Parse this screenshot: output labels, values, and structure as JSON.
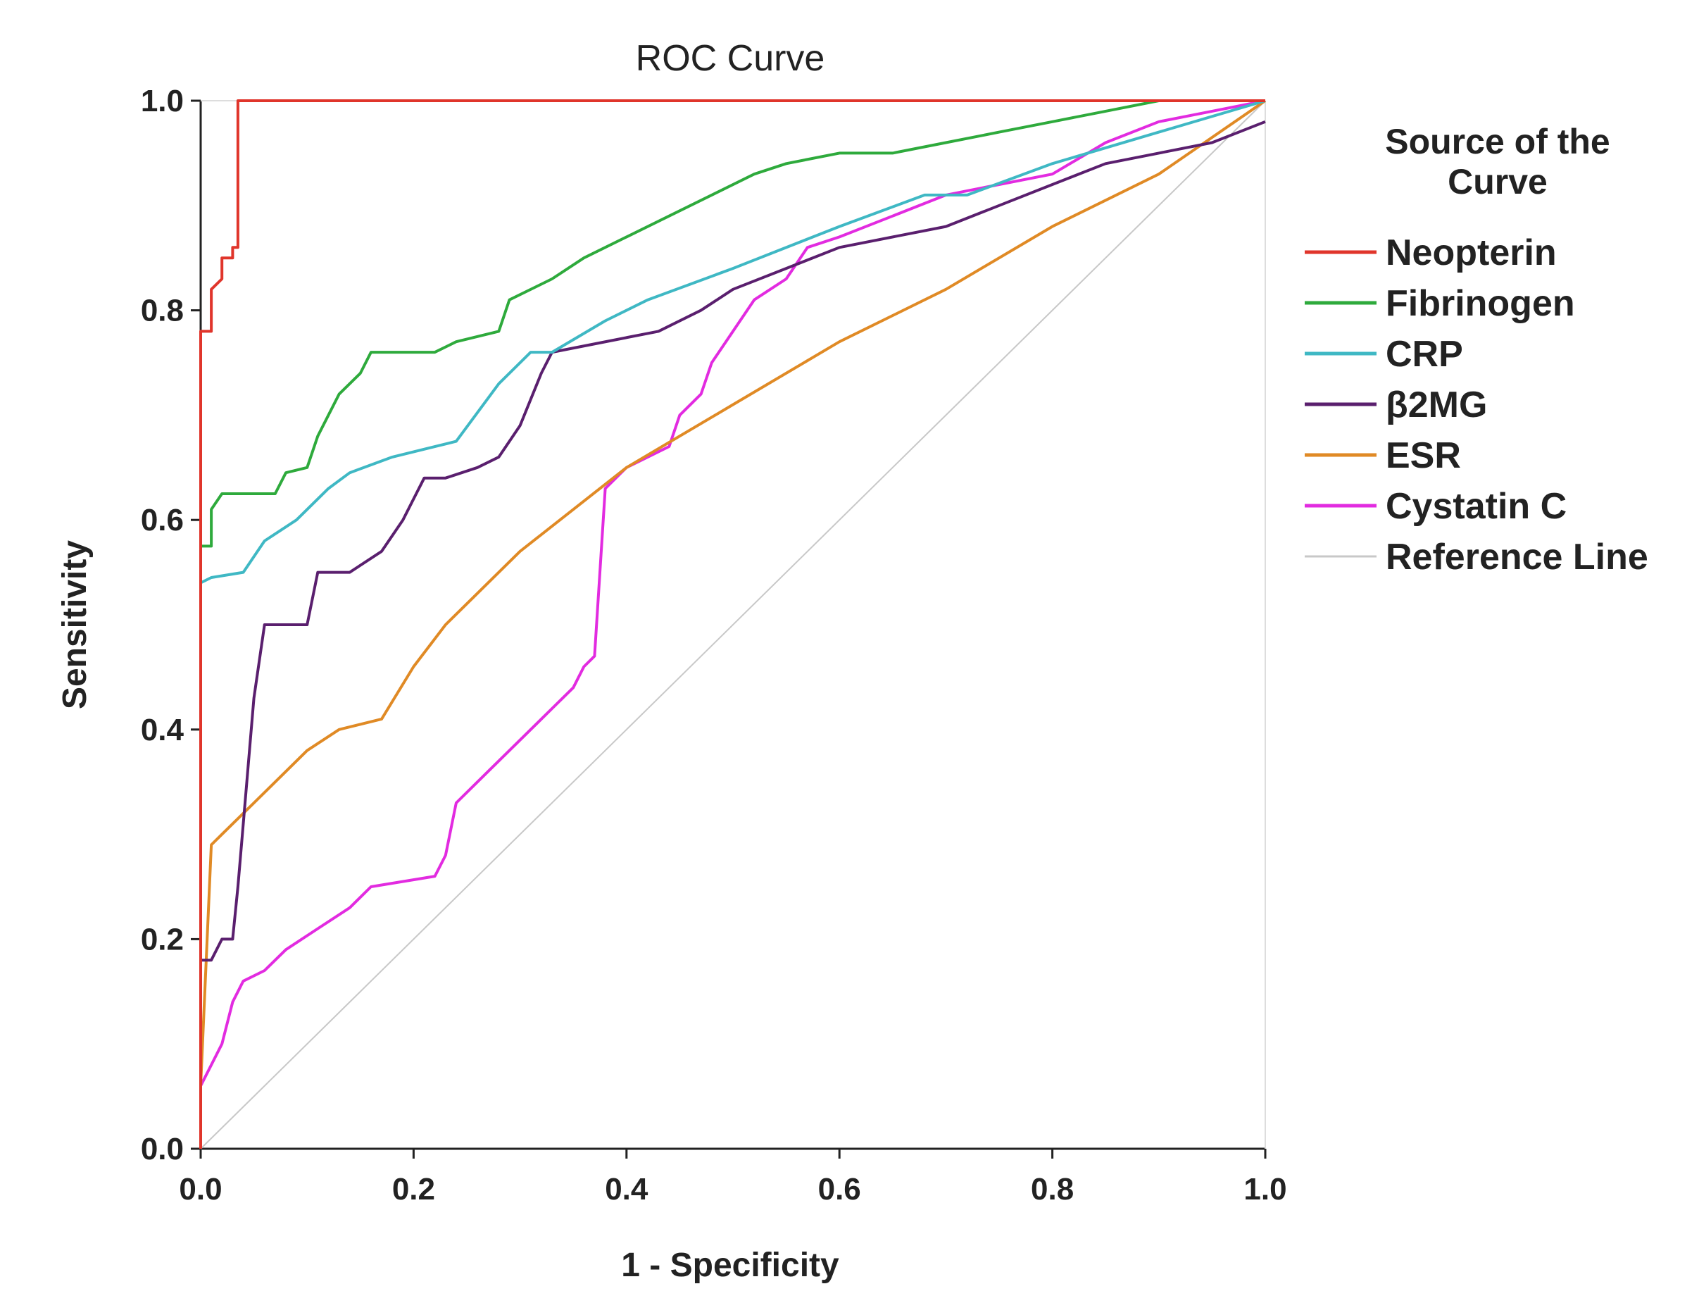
{
  "chart_data": {
    "type": "line",
    "title": "ROC Curve",
    "xlabel": "1 - Specificity",
    "ylabel": "Sensitivity",
    "xlim": [
      0,
      1
    ],
    "ylim": [
      0,
      1
    ],
    "x_ticks": [
      0.0,
      0.2,
      0.4,
      0.6,
      0.8,
      1.0
    ],
    "y_ticks": [
      0.0,
      0.2,
      0.4,
      0.6,
      0.8,
      1.0
    ],
    "x_tick_labels": [
      "0.0",
      "0.2",
      "0.4",
      "0.6",
      "0.8",
      "1.0"
    ],
    "y_tick_labels": [
      "0.0",
      "0.2",
      "0.4",
      "0.6",
      "0.8",
      "1.0"
    ],
    "grid": false,
    "legend": {
      "title_line1": "Source of the",
      "title_line2": "Curve",
      "placement": "right"
    },
    "series": [
      {
        "name": "Neopterin",
        "color": "#e0352b",
        "x": [
          0,
          0,
          0,
          0.01,
          0.01,
          0.02,
          0.02,
          0.03,
          0.03,
          0.035,
          0.035,
          0.045,
          0.05,
          1.0
        ],
        "y": [
          0,
          0.78,
          0.78,
          0.78,
          0.82,
          0.83,
          0.85,
          0.85,
          0.86,
          0.86,
          1.0,
          1.0,
          1.0,
          1.0
        ]
      },
      {
        "name": "Fibrinogen",
        "color": "#2eaa3c",
        "x": [
          0,
          0,
          0.01,
          0.01,
          0.02,
          0.07,
          0.08,
          0.1,
          0.11,
          0.13,
          0.15,
          0.16,
          0.22,
          0.24,
          0.28,
          0.29,
          0.33,
          0.36,
          0.4,
          0.44,
          0.48,
          0.52,
          0.55,
          0.6,
          0.65,
          0.7,
          0.75,
          0.8,
          0.85,
          0.9,
          0.95,
          1.0
        ],
        "y": [
          0.55,
          0.575,
          0.575,
          0.61,
          0.625,
          0.625,
          0.645,
          0.65,
          0.68,
          0.72,
          0.74,
          0.76,
          0.76,
          0.77,
          0.78,
          0.81,
          0.83,
          0.85,
          0.87,
          0.89,
          0.91,
          0.93,
          0.94,
          0.95,
          0.95,
          0.96,
          0.97,
          0.98,
          0.99,
          1.0,
          1.0,
          1.0
        ]
      },
      {
        "name": "CRP",
        "color": "#3fb8c4",
        "x": [
          0,
          0,
          0.01,
          0.04,
          0.06,
          0.09,
          0.12,
          0.14,
          0.18,
          0.24,
          0.28,
          0.31,
          0.33,
          0.38,
          0.42,
          0.5,
          0.6,
          0.68,
          0.72,
          0.8,
          0.9,
          1.0
        ],
        "y": [
          0.24,
          0.54,
          0.545,
          0.55,
          0.58,
          0.6,
          0.63,
          0.645,
          0.66,
          0.675,
          0.73,
          0.76,
          0.76,
          0.79,
          0.81,
          0.84,
          0.88,
          0.91,
          0.91,
          0.94,
          0.97,
          1.0
        ]
      },
      {
        "name": "β2MG",
        "color": "#5a1f6e",
        "x": [
          0,
          0.01,
          0.02,
          0.03,
          0.035,
          0.04,
          0.05,
          0.06,
          0.1,
          0.11,
          0.14,
          0.17,
          0.19,
          0.2,
          0.21,
          0.23,
          0.26,
          0.28,
          0.3,
          0.32,
          0.33,
          0.43,
          0.47,
          0.5,
          0.55,
          0.6,
          0.7,
          0.75,
          0.8,
          0.85,
          0.9,
          0.95,
          1.0
        ],
        "y": [
          0.18,
          0.18,
          0.2,
          0.2,
          0.25,
          0.31,
          0.43,
          0.5,
          0.5,
          0.55,
          0.55,
          0.57,
          0.6,
          0.62,
          0.64,
          0.64,
          0.65,
          0.66,
          0.69,
          0.74,
          0.76,
          0.78,
          0.8,
          0.82,
          0.84,
          0.86,
          0.88,
          0.9,
          0.92,
          0.94,
          0.95,
          0.96,
          0.98
        ]
      },
      {
        "name": "ESR",
        "color": "#e08a25",
        "x": [
          0,
          0.01,
          0.02,
          0.05,
          0.1,
          0.13,
          0.17,
          0.2,
          0.23,
          0.3,
          0.4,
          0.5,
          0.6,
          0.7,
          0.8,
          0.9,
          1.0
        ],
        "y": [
          0.06,
          0.29,
          0.3,
          0.33,
          0.38,
          0.4,
          0.41,
          0.46,
          0.5,
          0.57,
          0.65,
          0.71,
          0.77,
          0.82,
          0.88,
          0.93,
          1.0
        ]
      },
      {
        "name": "Cystatin C",
        "color": "#e22be0",
        "x": [
          0,
          0.01,
          0.02,
          0.03,
          0.04,
          0.06,
          0.08,
          0.11,
          0.14,
          0.16,
          0.22,
          0.23,
          0.24,
          0.27,
          0.3,
          0.33,
          0.35,
          0.36,
          0.37,
          0.38,
          0.4,
          0.44,
          0.45,
          0.47,
          0.48,
          0.5,
          0.52,
          0.55,
          0.57,
          0.6,
          0.65,
          0.7,
          0.75,
          0.8,
          0.85,
          0.9,
          0.95,
          1.0
        ],
        "y": [
          0.06,
          0.08,
          0.1,
          0.14,
          0.16,
          0.17,
          0.19,
          0.21,
          0.23,
          0.25,
          0.26,
          0.28,
          0.33,
          0.36,
          0.39,
          0.42,
          0.44,
          0.46,
          0.47,
          0.63,
          0.65,
          0.67,
          0.7,
          0.72,
          0.75,
          0.78,
          0.81,
          0.83,
          0.86,
          0.87,
          0.89,
          0.91,
          0.92,
          0.93,
          0.96,
          0.98,
          0.99,
          1.0
        ]
      },
      {
        "name": "Reference Line",
        "color": "#c8c8c8",
        "x": [
          0,
          1
        ],
        "y": [
          0,
          1
        ]
      }
    ]
  }
}
